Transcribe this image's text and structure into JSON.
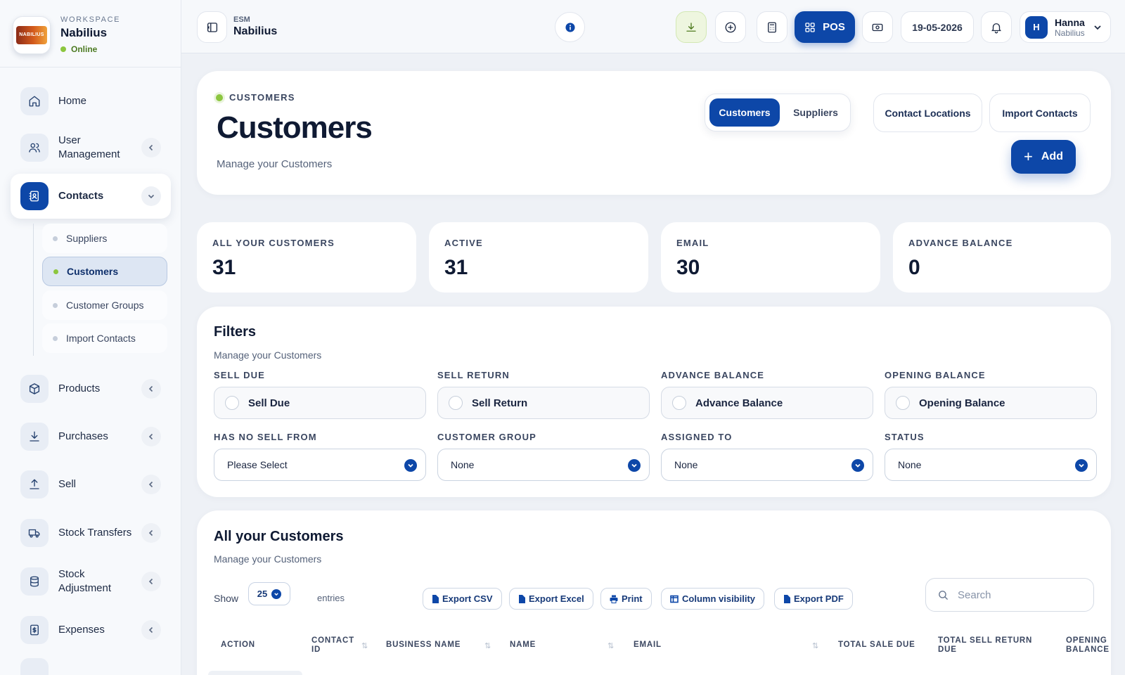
{
  "workspace": {
    "caption": "WORKSPACE",
    "name": "Nabilius",
    "status": "Online",
    "logo_text": "NABILIUS"
  },
  "sidebar": {
    "items": [
      {
        "label": "Home",
        "icon": "home-icon"
      },
      {
        "label": "User Management",
        "icon": "users-icon"
      },
      {
        "label": "Contacts",
        "icon": "contacts-icon"
      },
      {
        "label": "Products",
        "icon": "box-icon"
      },
      {
        "label": "Purchases",
        "icon": "download-icon"
      },
      {
        "label": "Sell",
        "icon": "upload-icon"
      },
      {
        "label": "Stock Transfers",
        "icon": "truck-icon"
      },
      {
        "label": "Stock Adjustment",
        "icon": "database-icon"
      },
      {
        "label": "Expenses",
        "icon": "receipt-icon"
      }
    ],
    "contacts_sub": [
      "Suppliers",
      "Customers",
      "Customer Groups",
      "Import Contacts"
    ]
  },
  "topbar": {
    "company_code": "ESM",
    "company_name": "Nabilius",
    "pos_label": "POS",
    "date": "19-05-2026",
    "user_name": "Hanna",
    "user_org": "Nabilius",
    "user_initial": "H"
  },
  "header": {
    "eyebrow": "CUSTOMERS",
    "title": "Customers",
    "subtitle": "Manage your Customers",
    "tab_customers": "Customers",
    "tab_suppliers": "Suppliers",
    "contact_locations": "Contact Locations",
    "import_contacts": "Import Contacts",
    "add_label": "Add"
  },
  "stats": [
    {
      "label": "ALL YOUR CUSTOMERS",
      "value": "31"
    },
    {
      "label": "ACTIVE",
      "value": "31"
    },
    {
      "label": "EMAIL",
      "value": "30"
    },
    {
      "label": "ADVANCE BALANCE",
      "value": "0"
    }
  ],
  "filters": {
    "title": "Filters",
    "subtitle": "Manage your Customers",
    "sell_due": {
      "label": "SELL DUE",
      "text": "Sell Due"
    },
    "sell_return": {
      "label": "SELL RETURN",
      "text": "Sell Return"
    },
    "advance_balance": {
      "label": "ADVANCE BALANCE",
      "text": "Advance Balance"
    },
    "opening_balance": {
      "label": "OPENING BALANCE",
      "text": "Opening Balance"
    },
    "has_no_sell_from": {
      "label": "HAS NO SELL FROM",
      "value": "Please Select"
    },
    "customer_group": {
      "label": "CUSTOMER GROUP",
      "value": "None"
    },
    "assigned_to": {
      "label": "ASSIGNED TO",
      "value": "None"
    },
    "status": {
      "label": "STATUS",
      "value": "None"
    }
  },
  "table": {
    "title": "All your Customers",
    "subtitle": "Manage your Customers",
    "show_label": "Show",
    "entries_value": "25",
    "entries_label": "entries",
    "export_csv": "Export CSV",
    "export_excel": "Export Excel",
    "print": "Print",
    "column_visibility": "Column visibility",
    "export_pdf": "Export PDF",
    "search_placeholder": "Search",
    "headers": [
      "ACTION",
      "CONTACT ID",
      "BUSINESS NAME",
      "NAME",
      "EMAIL",
      "TOTAL SALE DUE",
      "TOTAL SELL RETURN DUE",
      "OPENING BALANCE"
    ]
  },
  "colors": {
    "primary": "#0d47a8",
    "online": "#8cc63f",
    "background": "#eef1f6"
  }
}
